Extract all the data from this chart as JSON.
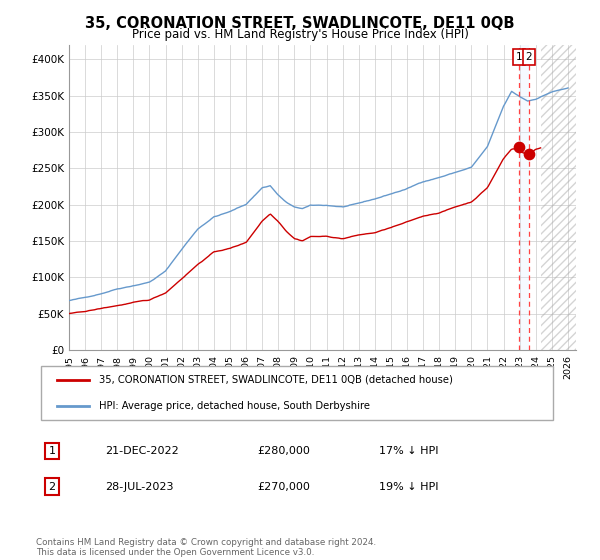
{
  "title": "35, CORONATION STREET, SWADLINCOTE, DE11 0QB",
  "subtitle": "Price paid vs. HM Land Registry's House Price Index (HPI)",
  "ylabel_ticks": [
    "£0",
    "£50K",
    "£100K",
    "£150K",
    "£200K",
    "£250K",
    "£300K",
    "£350K",
    "£400K"
  ],
  "ytick_values": [
    0,
    50000,
    100000,
    150000,
    200000,
    250000,
    300000,
    350000,
    400000
  ],
  "ylim": [
    0,
    420000
  ],
  "xlim_start": 1995.0,
  "xlim_end": 2026.5,
  "hpi_color": "#6699cc",
  "price_color": "#cc0000",
  "sale1_date": 2022.97,
  "sale1_price": 280000,
  "sale1_label": "1",
  "sale2_date": 2023.57,
  "sale2_price": 270000,
  "sale2_label": "2",
  "vline_color": "#ff4444",
  "highlight_color": "#ddeeff",
  "future_start": 2024.3,
  "footer_text": "Contains HM Land Registry data © Crown copyright and database right 2024.\nThis data is licensed under the Open Government Licence v3.0.",
  "legend_entry1": "35, CORONATION STREET, SWADLINCOTE, DE11 0QB (detached house)",
  "legend_entry2": "HPI: Average price, detached house, South Derbyshire",
  "table_row1_num": "1",
  "table_row1_date": "21-DEC-2022",
  "table_row1_price": "£280,000",
  "table_row1_hpi": "17% ↓ HPI",
  "table_row2_num": "2",
  "table_row2_date": "28-JUL-2023",
  "table_row2_price": "£270,000",
  "table_row2_hpi": "19% ↓ HPI",
  "background_color": "#ffffff",
  "grid_color": "#cccccc",
  "hatch_color": "#aaaaaa"
}
